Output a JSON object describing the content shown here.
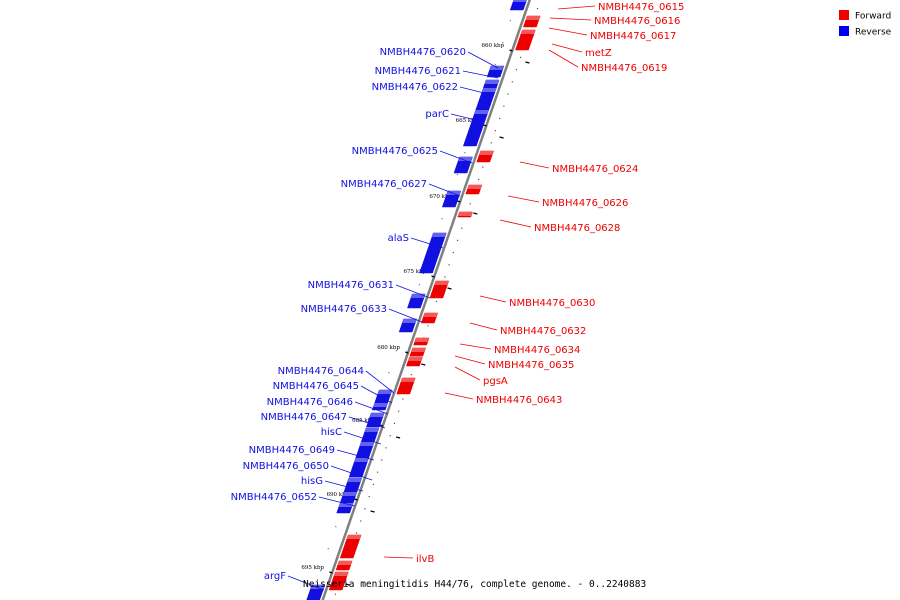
{
  "caption": "Neisseria meningitidis H44/76, complete genome. - 0..2240883",
  "legend": {
    "forward": {
      "label": "Forward",
      "color": "#ee0000"
    },
    "reverse": {
      "label": "Reverse",
      "color": "#0000ee"
    }
  },
  "colors": {
    "forward": "#ee0000",
    "reverse": "#1010e0",
    "axis": "#808080"
  },
  "ticks": [
    "660 kbp",
    "665 kbp",
    "670 kbp",
    "675 kbp",
    "680 kbp",
    "685 kbp",
    "690 kbp",
    "695 kbp"
  ],
  "forward_genes": [
    "NMBH4476_0615",
    "NMBH4476_0616",
    "NMBH4476_0617",
    "metZ",
    "NMBH4476_0619",
    "NMBH4476_0624",
    "NMBH4476_0626",
    "NMBH4476_0628",
    "NMBH4476_0630",
    "NMBH4476_0632",
    "NMBH4476_0634",
    "NMBH4476_0635",
    "pgsA",
    "NMBH4476_0643",
    "ilvB"
  ],
  "reverse_genes": [
    "NMBH4476_0620",
    "NMBH4476_0621",
    "NMBH4476_0622",
    "parC",
    "NMBH4476_0625",
    "NMBH4476_0627",
    "alaS",
    "NMBH4476_0631",
    "NMBH4476_0633",
    "NMBH4476_0644",
    "NMBH4476_0645",
    "NMBH4476_0646",
    "NMBH4476_0647",
    "hisC",
    "NMBH4476_0649",
    "NMBH4476_0650",
    "hisG",
    "NMBH4476_0652",
    "argF"
  ]
}
